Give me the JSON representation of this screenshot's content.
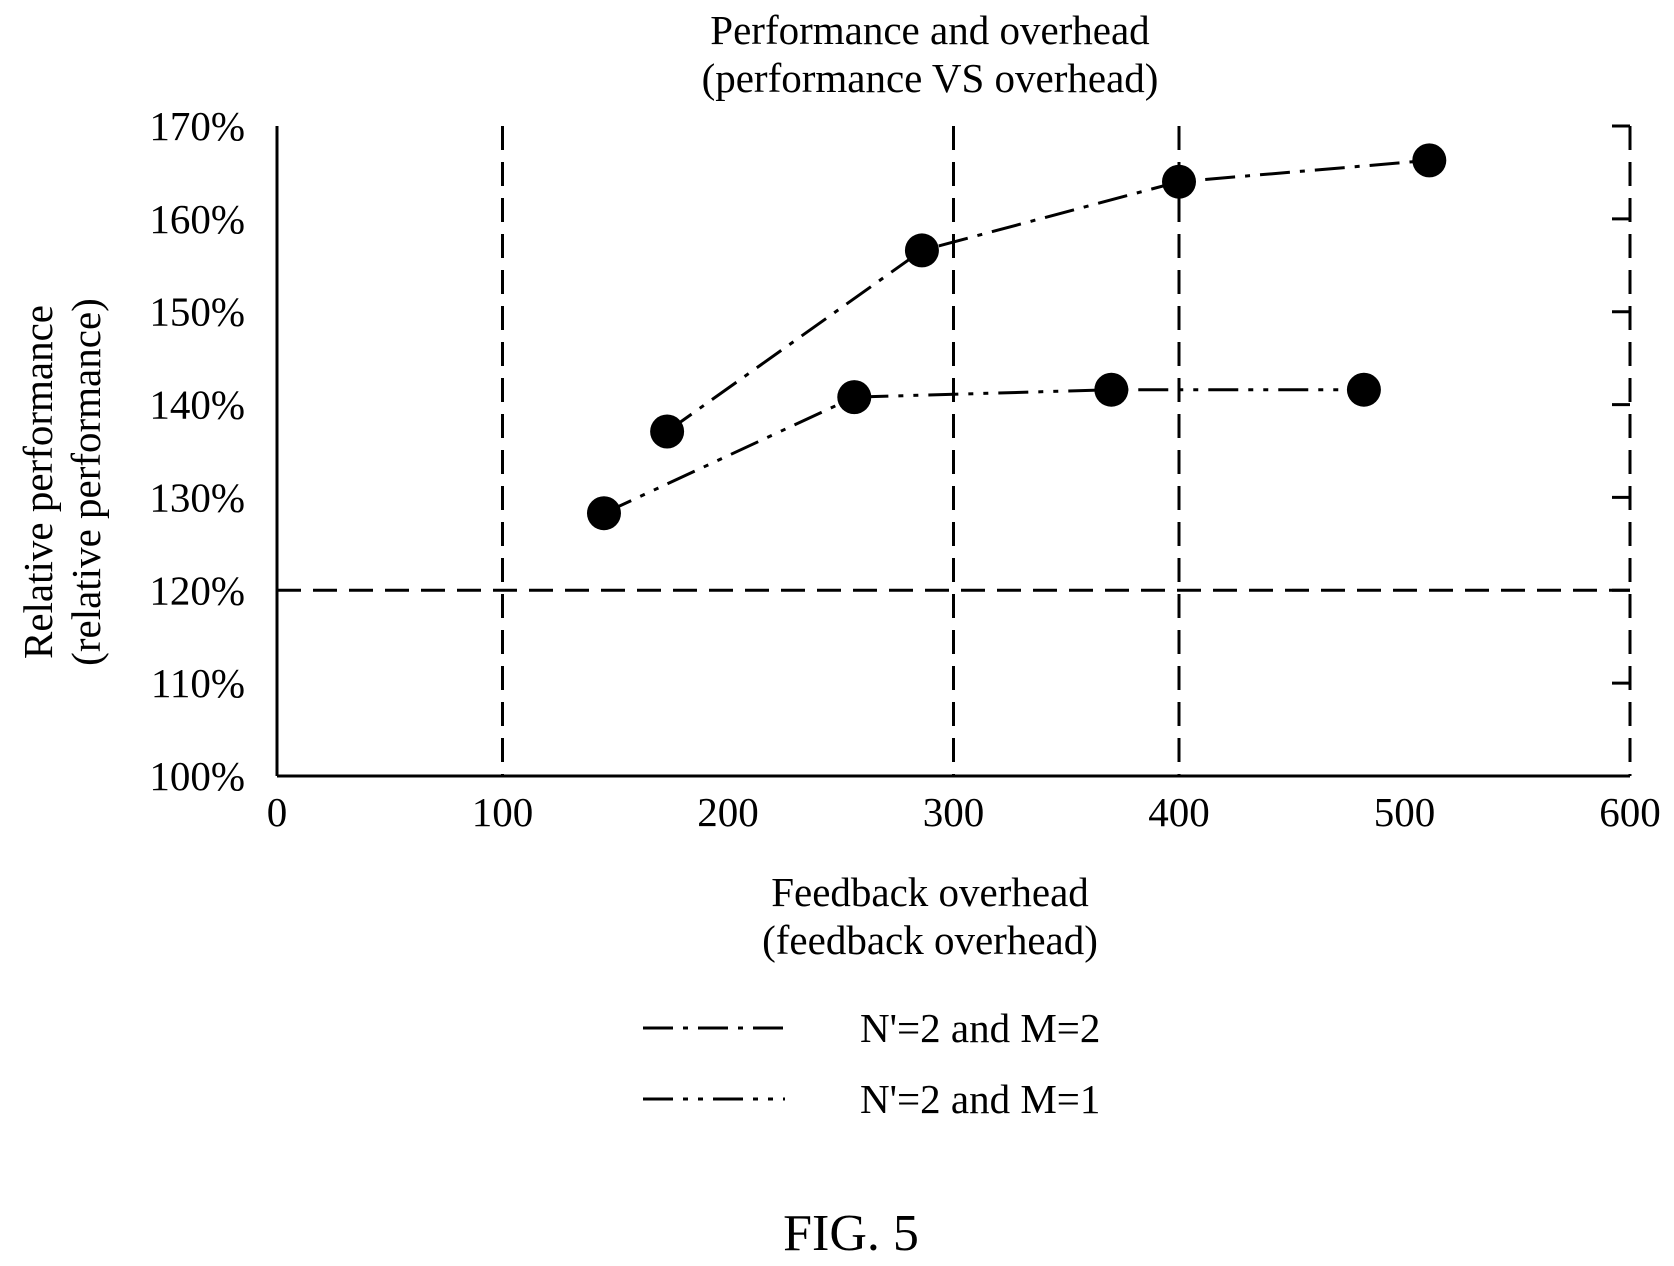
{
  "chart_data": {
    "type": "scatter",
    "title": [
      "Performance and overhead",
      "(performance VS overhead)"
    ],
    "xlabel": [
      "Feedback overhead",
      "(feedback overhead)"
    ],
    "ylabel": [
      "Relative performance",
      "(relative performance)"
    ],
    "xlim": [
      0,
      600
    ],
    "ylim": [
      100,
      170
    ],
    "x_ticks": [
      0,
      100,
      200,
      300,
      400,
      500,
      600
    ],
    "y_ticks": [
      100,
      110,
      120,
      130,
      140,
      150,
      160,
      170
    ],
    "y_tick_labels": [
      "100%",
      "110%",
      "120%",
      "130%",
      "140%",
      "150%",
      "160%",
      "170%"
    ],
    "reference_lines": {
      "vertical": [
        100,
        300,
        400,
        600
      ],
      "horizontal": [
        120
      ]
    },
    "series": [
      {
        "name": "N'=2 and M=2",
        "line_style": "dash-dot",
        "x": [
          173,
          286,
          400,
          511
        ],
        "y": [
          137.1,
          156.6,
          164.0,
          166.3
        ]
      },
      {
        "name": "N'=2 and M=1",
        "line_style": "dash-dot-dot",
        "x": [
          145,
          256,
          370,
          482
        ],
        "y": [
          128.3,
          140.8,
          141.6,
          141.6
        ]
      }
    ],
    "legend_placement": "bottom-center",
    "grid": false
  },
  "figure_label": "FIG. 5",
  "colors": {
    "ink": "#000000",
    "background": "#ffffff"
  }
}
